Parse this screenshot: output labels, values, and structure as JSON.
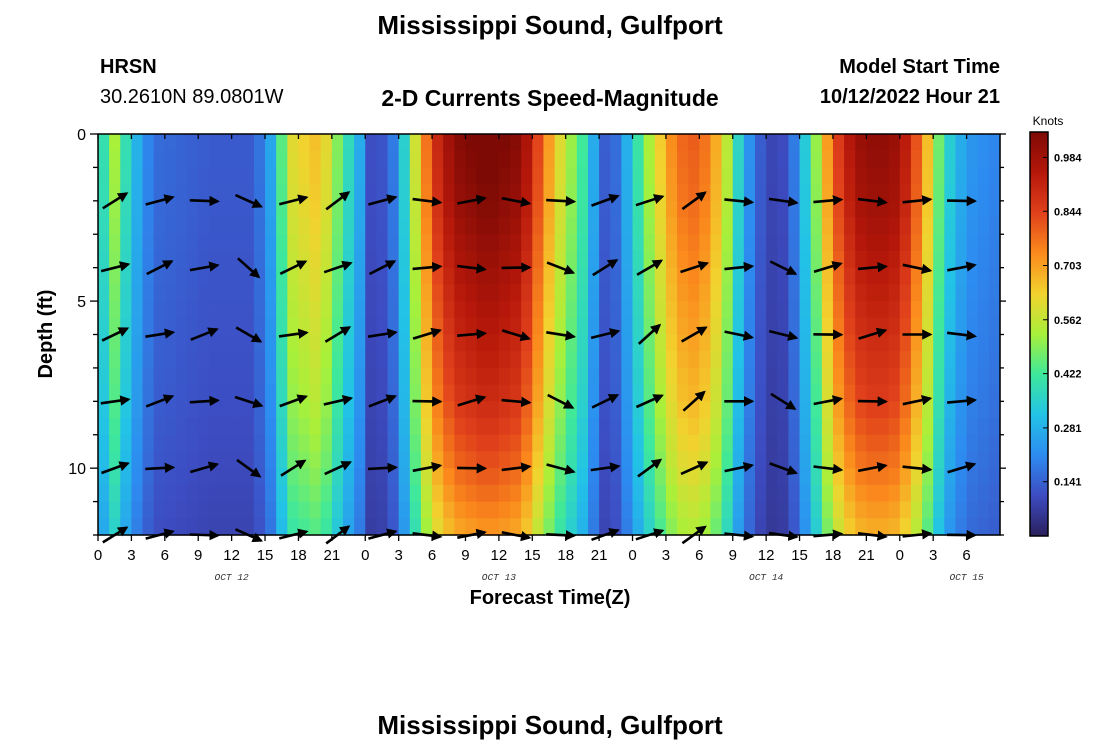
{
  "header": {
    "title": "Mississippi Sound, Gulfport",
    "station_code": "HRSN",
    "coordinates": "30.2610N  89.0801W",
    "subtitle": "2-D Currents Speed-Magnitude",
    "model_label": "Model Start Time",
    "model_time": "10/12/2022 Hour 21",
    "footer_title": "Mississippi Sound, Gulfport"
  },
  "colors": {
    "arrow": "#000000",
    "scale": [
      "#2a1f5c",
      "#3d4cc2",
      "#2d8bf0",
      "#22c3e6",
      "#3ee89b",
      "#a8f03a",
      "#f2d22e",
      "#fb8a1c",
      "#e0401b",
      "#b5170a",
      "#7e0a05"
    ]
  },
  "chart_data": {
    "type": "heatmap",
    "title": "2-D Currents Speed-Magnitude",
    "xlabel": "Forecast Time(Z)",
    "ylabel": "Depth (ft)",
    "x_range_hours": [
      0,
      81
    ],
    "x_ticks": [
      "0",
      "3",
      "6",
      "9",
      "12",
      "15",
      "18",
      "21",
      "0",
      "3",
      "6",
      "9",
      "12",
      "15",
      "18",
      "21",
      "0",
      "3",
      "6",
      "9",
      "12",
      "15",
      "18",
      "21",
      "0",
      "3",
      "6"
    ],
    "date_labels": [
      {
        "label": "OCT 12",
        "hour": 12
      },
      {
        "label": "OCT 13",
        "hour": 36
      },
      {
        "label": "OCT 14",
        "hour": 60
      },
      {
        "label": "OCT 15",
        "hour": 78
      }
    ],
    "ylim": [
      0,
      12
    ],
    "y_ticks": [
      0,
      5,
      10
    ],
    "y_minor_step": 1,
    "colorbar": {
      "units": "Knots",
      "min": 0.0,
      "max": 1.05,
      "ticks": [
        "0.984",
        "0.844",
        "0.703",
        "0.562",
        "0.422",
        "0.281",
        "0.141"
      ]
    },
    "speed_profile_hours": [
      0,
      1,
      3,
      5,
      10,
      14,
      16,
      17,
      20,
      22,
      24,
      24.5,
      25,
      27,
      28,
      30,
      32,
      35,
      38,
      41,
      44,
      45,
      46,
      47,
      48,
      50,
      52,
      54,
      56,
      58,
      60,
      62,
      64,
      66,
      68,
      70,
      72,
      74,
      76,
      78,
      81
    ],
    "speed_profile_knots": [
      0.18,
      0.55,
      0.3,
      0.15,
      0.12,
      0.12,
      0.28,
      0.55,
      0.62,
      0.4,
      0.2,
      0.1,
      0.08,
      0.2,
      0.45,
      0.8,
      0.95,
      1.0,
      0.95,
      0.6,
      0.35,
      0.15,
      0.1,
      0.2,
      0.32,
      0.55,
      0.72,
      0.75,
      0.6,
      0.25,
      0.08,
      0.1,
      0.38,
      0.75,
      0.92,
      0.95,
      0.92,
      0.7,
      0.35,
      0.22,
      0.18
    ],
    "depth_factor_ft": [
      0,
      2,
      4,
      6,
      8,
      10,
      12
    ],
    "depth_factor": [
      1.08,
      1.05,
      1.0,
      0.95,
      0.9,
      0.82,
      0.72
    ],
    "arrow_depths_ft": [
      2,
      4,
      6,
      8,
      10,
      12
    ],
    "arrow_hours": [
      1.5,
      5.5,
      9.5,
      13.5,
      17.5,
      21.5,
      25.5,
      29.5,
      33.5,
      37.5,
      41.5,
      45.5,
      49.5,
      53.5,
      57.5,
      61.5,
      65.5,
      69.5,
      73.5,
      77.5
    ],
    "arrow_direction_deg": [
      70,
      75,
      80,
      120,
      70,
      65,
      75,
      85,
      85,
      95,
      105,
      70,
      60,
      60,
      90,
      110,
      85,
      85,
      90,
      85
    ]
  }
}
